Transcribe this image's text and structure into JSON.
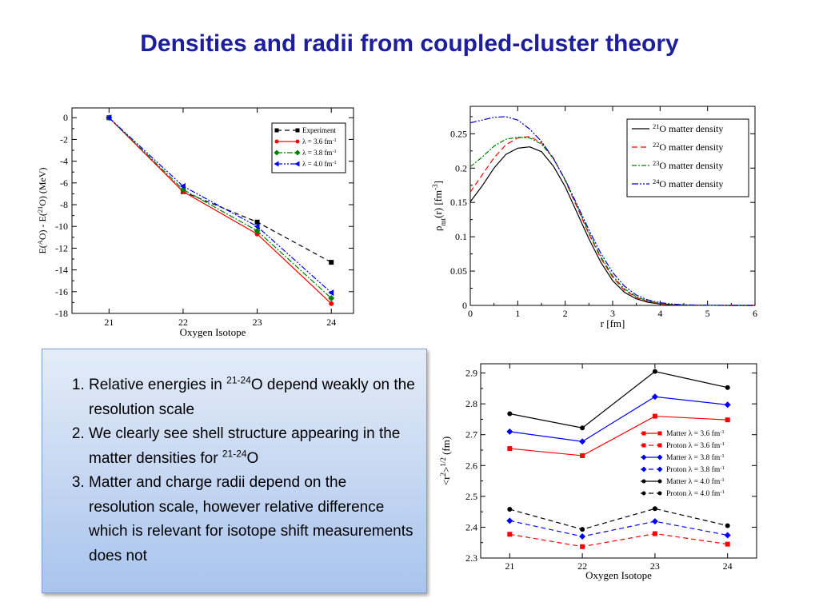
{
  "title": "Densities and radii from coupled-cluster theory",
  "bullets": [
    {
      "pre": "Relative energies in ",
      "sup": "21-24",
      "post": "O depend weakly on the resolution scale"
    },
    {
      "pre": "We clearly see shell structure appearing in the matter densities for ",
      "sup": "21-24",
      "post": "O"
    },
    {
      "pre": "Matter and charge radii depend on the resolution scale, however relative difference which is relevant for isotope shift measurements does not",
      "sup": "",
      "post": ""
    }
  ],
  "chart_data": [
    {
      "type": "line",
      "xlabel": "Oxygen Isotope",
      "ylabel_parts": [
        "E(",
        "A",
        "O) - E(",
        "21",
        "O) (MeV)"
      ],
      "x": [
        21,
        22,
        23,
        24
      ],
      "xticks": [
        "21",
        "22",
        "23",
        "24"
      ],
      "yticks": [
        "0",
        "-2",
        "-4",
        "-6",
        "-8",
        "-10",
        "-12",
        "-14",
        "-16",
        "-18"
      ],
      "xlim": [
        20.5,
        24.3
      ],
      "ylim": [
        -18,
        0.9
      ],
      "legend_position": "top-right",
      "series": [
        {
          "name": "Experiment",
          "color": "#000000",
          "marker": "square",
          "dash": "6,4",
          "values": [
            0,
            -6.8,
            -9.6,
            -13.3
          ]
        },
        {
          "name_pre": "λ = 3.6 fm",
          "name_sup": "-1",
          "color": "#ff0000",
          "marker": "circle",
          "dash": "",
          "values": [
            0,
            -6.8,
            -10.7,
            -17.1
          ]
        },
        {
          "name_pre": "λ = 3.8 fm",
          "name_sup": "-1",
          "color": "#008000",
          "marker": "diamond",
          "dash": "7,2,2,2",
          "values": [
            0,
            -6.6,
            -10.4,
            -16.6
          ]
        },
        {
          "name_pre": "λ = 4.0 fm",
          "name_sup": "-1",
          "color": "#0000ff",
          "marker": "triangle",
          "dash": "7,2,2,2,2,2",
          "values": [
            0,
            -6.3,
            -10.0,
            -16.1
          ]
        }
      ]
    },
    {
      "type": "line",
      "xlabel": "r [fm]",
      "ylabel_parts": [
        "ρ",
        "mt",
        "(r) [fm",
        "-3",
        "]"
      ],
      "xticks": [
        "0",
        "1",
        "2",
        "3",
        "4",
        "5",
        "6"
      ],
      "yticks": [
        "0",
        "0.05",
        "0.1",
        "0.15",
        "0.2",
        "0.25"
      ],
      "xlim": [
        0,
        6
      ],
      "ylim": [
        0,
        0.29
      ],
      "legend_position": "top-right",
      "series": [
        {
          "sup": "21",
          "label": "O matter density",
          "color": "#000000",
          "dash": "",
          "x": [
            0,
            0.25,
            0.5,
            0.75,
            1.0,
            1.25,
            1.5,
            1.75,
            2.0,
            2.25,
            2.5,
            2.75,
            3.0,
            3.25,
            3.5,
            3.75,
            4.0,
            4.25,
            4.5,
            5.0,
            5.5,
            6.0
          ],
          "y": [
            0.151,
            0.174,
            0.2,
            0.22,
            0.229,
            0.231,
            0.224,
            0.203,
            0.173,
            0.135,
            0.097,
            0.063,
            0.036,
            0.019,
            0.0095,
            0.0045,
            0.002,
            0.0009,
            0.0004,
            0.0001,
            2e-05,
            0
          ]
        },
        {
          "sup": "22",
          "label": "O matter density",
          "color": "#ff0000",
          "dash": "7,4",
          "x": [
            0,
            0.25,
            0.5,
            0.75,
            1.0,
            1.25,
            1.5,
            1.75,
            2.0,
            2.25,
            2.5,
            2.75,
            3.0,
            3.25,
            3.5,
            3.75,
            4.0,
            4.25,
            4.5,
            5.0,
            5.5,
            6.0
          ],
          "y": [
            0.165,
            0.19,
            0.215,
            0.234,
            0.244,
            0.246,
            0.237,
            0.215,
            0.182,
            0.143,
            0.104,
            0.069,
            0.041,
            0.022,
            0.0115,
            0.0055,
            0.0025,
            0.0011,
            0.0005,
            0.0001,
            2e-05,
            0
          ]
        },
        {
          "sup": "23",
          "label": "O matter density",
          "color": "#008000",
          "dash": "6,2,2,2",
          "x": [
            0,
            0.25,
            0.5,
            0.75,
            1.0,
            1.25,
            1.5,
            1.75,
            2.0,
            2.25,
            2.5,
            2.75,
            3.0,
            3.25,
            3.5,
            3.75,
            4.0,
            4.25,
            4.5,
            5.0,
            5.5,
            6.0
          ],
          "y": [
            0.202,
            0.216,
            0.232,
            0.242,
            0.245,
            0.244,
            0.235,
            0.214,
            0.183,
            0.145,
            0.106,
            0.071,
            0.043,
            0.024,
            0.0125,
            0.0062,
            0.003,
            0.0014,
            0.0006,
            0.0001,
            2e-05,
            0
          ]
        },
        {
          "sup": "24",
          "label": "O matter density",
          "color": "#0000cc",
          "dash": "8,2,2,2,2,2",
          "x": [
            0,
            0.25,
            0.5,
            0.75,
            1.0,
            1.25,
            1.5,
            1.75,
            2.0,
            2.25,
            2.5,
            2.75,
            3.0,
            3.25,
            3.5,
            3.75,
            4.0,
            4.25,
            4.5,
            5.0,
            5.5,
            6.0
          ],
          "y": [
            0.266,
            0.27,
            0.274,
            0.275,
            0.27,
            0.257,
            0.239,
            0.214,
            0.183,
            0.147,
            0.11,
            0.076,
            0.048,
            0.028,
            0.015,
            0.0078,
            0.004,
            0.002,
            0.0009,
            0.0002,
            3e-05,
            0
          ]
        }
      ]
    },
    {
      "type": "line",
      "xlabel": "Oxygen Isotope",
      "ylabel_parts": [
        "<r",
        "2",
        ">",
        "1/2",
        "(fm)"
      ],
      "x": [
        21,
        22,
        23,
        24
      ],
      "xticks": [
        "21",
        "22",
        "23",
        "24"
      ],
      "yticks": [
        "2.3",
        "2.4",
        "2.5",
        "2.6",
        "2.7",
        "2.8",
        "2.9"
      ],
      "xlim": [
        20.6,
        24.4
      ],
      "ylim": [
        2.3,
        2.93
      ],
      "legend_position": "center-right",
      "series": [
        {
          "kind": "Matter",
          "lam": "3.6",
          "color": "#ff0000",
          "marker": "square",
          "dash": "",
          "values": [
            2.655,
            2.632,
            2.76,
            2.748
          ]
        },
        {
          "kind": "Proton",
          "lam": "3.6",
          "color": "#ff0000",
          "marker": "square",
          "dash": "6,4",
          "values": [
            2.377,
            2.337,
            2.379,
            2.345
          ]
        },
        {
          "kind": "Matter",
          "lam": "3.8",
          "color": "#0000ff",
          "marker": "diamond",
          "dash": "",
          "values": [
            2.71,
            2.678,
            2.823,
            2.797
          ]
        },
        {
          "kind": "Proton",
          "lam": "3.8",
          "color": "#0000ff",
          "marker": "diamond",
          "dash": "6,4",
          "values": [
            2.421,
            2.37,
            2.419,
            2.374
          ]
        },
        {
          "kind": "Matter",
          "lam": "4.0",
          "color": "#000000",
          "marker": "circle",
          "dash": "",
          "values": [
            2.768,
            2.722,
            2.905,
            2.853
          ]
        },
        {
          "kind": "Proton",
          "lam": "4.0",
          "color": "#000000",
          "marker": "circle",
          "dash": "6,4",
          "values": [
            2.458,
            2.393,
            2.46,
            2.405
          ]
        }
      ],
      "legend_label_pre": " λ = ",
      "legend_label_unit": " fm",
      "legend_label_sup": "-1"
    }
  ]
}
